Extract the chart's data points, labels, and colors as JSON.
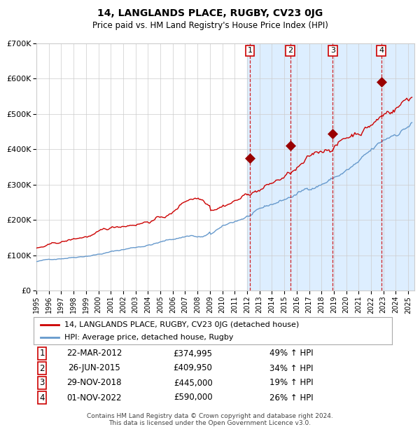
{
  "title": "14, LANGLANDS PLACE, RUGBY, CV23 0JG",
  "subtitle": "Price paid vs. HM Land Registry's House Price Index (HPI)",
  "legend_label_red": "14, LANGLANDS PLACE, RUGBY, CV23 0JG (detached house)",
  "legend_label_blue": "HPI: Average price, detached house, Rugby",
  "footer_line1": "Contains HM Land Registry data © Crown copyright and database right 2024.",
  "footer_line2": "This data is licensed under the Open Government Licence v3.0.",
  "transactions": [
    {
      "num": 1,
      "date": "22-MAR-2012",
      "price": 374995,
      "pct": "49%",
      "dir": "↑"
    },
    {
      "num": 2,
      "date": "26-JUN-2015",
      "price": 409950,
      "pct": "34%",
      "dir": "↑"
    },
    {
      "num": 3,
      "date": "29-NOV-2018",
      "price": 445000,
      "pct": "19%",
      "dir": "↑"
    },
    {
      "num": 4,
      "date": "01-NOV-2022",
      "price": 590000,
      "pct": "26%",
      "dir": "↑"
    }
  ],
  "transaction_dates_decimal": [
    2012.22,
    2015.49,
    2018.91,
    2022.83
  ],
  "transaction_prices": [
    374995,
    409950,
    445000,
    590000
  ],
  "hpi_color": "#6699cc",
  "price_color": "#cc0000",
  "background_color": "#ffffff",
  "shaded_region_color": "#ddeeff",
  "grid_color": "#cccccc",
  "ymin": 0,
  "ymax": 700000,
  "xmin": 1995.0,
  "xmax": 2025.5
}
